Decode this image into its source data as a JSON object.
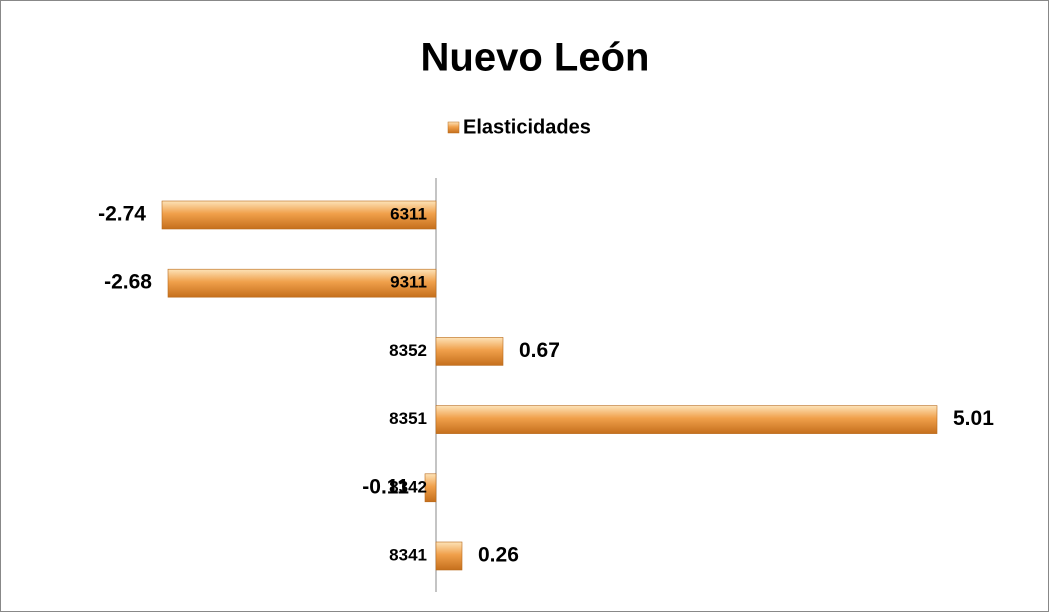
{
  "chart_data": {
    "type": "bar",
    "orientation": "horizontal",
    "title": "Nuevo León",
    "categories": [
      "6311",
      "9311",
      "8352",
      "8351",
      "8342",
      "8341"
    ],
    "series": [
      {
        "name": "Elasticidades",
        "color": "#f0a04b",
        "values": [
          -2.74,
          -2.68,
          0.67,
          5.01,
          -0.11,
          0.26
        ]
      }
    ],
    "xlim": [
      -3,
      6
    ],
    "legend": "top"
  }
}
